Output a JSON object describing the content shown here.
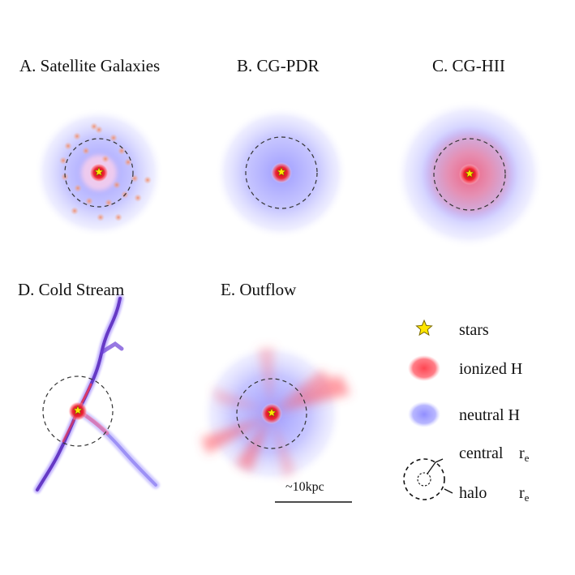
{
  "panels": [
    {
      "letter": "A.",
      "label": "Satellite Galaxies"
    },
    {
      "letter": "B.",
      "label": "CG-PDR"
    },
    {
      "letter": "C.",
      "label": "CG-HII"
    },
    {
      "letter": "D.",
      "label": "Cold Stream"
    },
    {
      "letter": "E.",
      "label": "Outflow"
    }
  ],
  "legend": {
    "stars": "stars",
    "ionized": "ionized H",
    "neutral": "neutral H",
    "central": "central",
    "halo": "halo",
    "re_symbol": "r",
    "re_sub": "e"
  },
  "scalebar": {
    "label": "~10kpc"
  },
  "colors": {
    "ionized": "#ff2d3a",
    "neutral": "#8f8cff",
    "star": "#ffe600",
    "stream": "#6a2fc0"
  }
}
